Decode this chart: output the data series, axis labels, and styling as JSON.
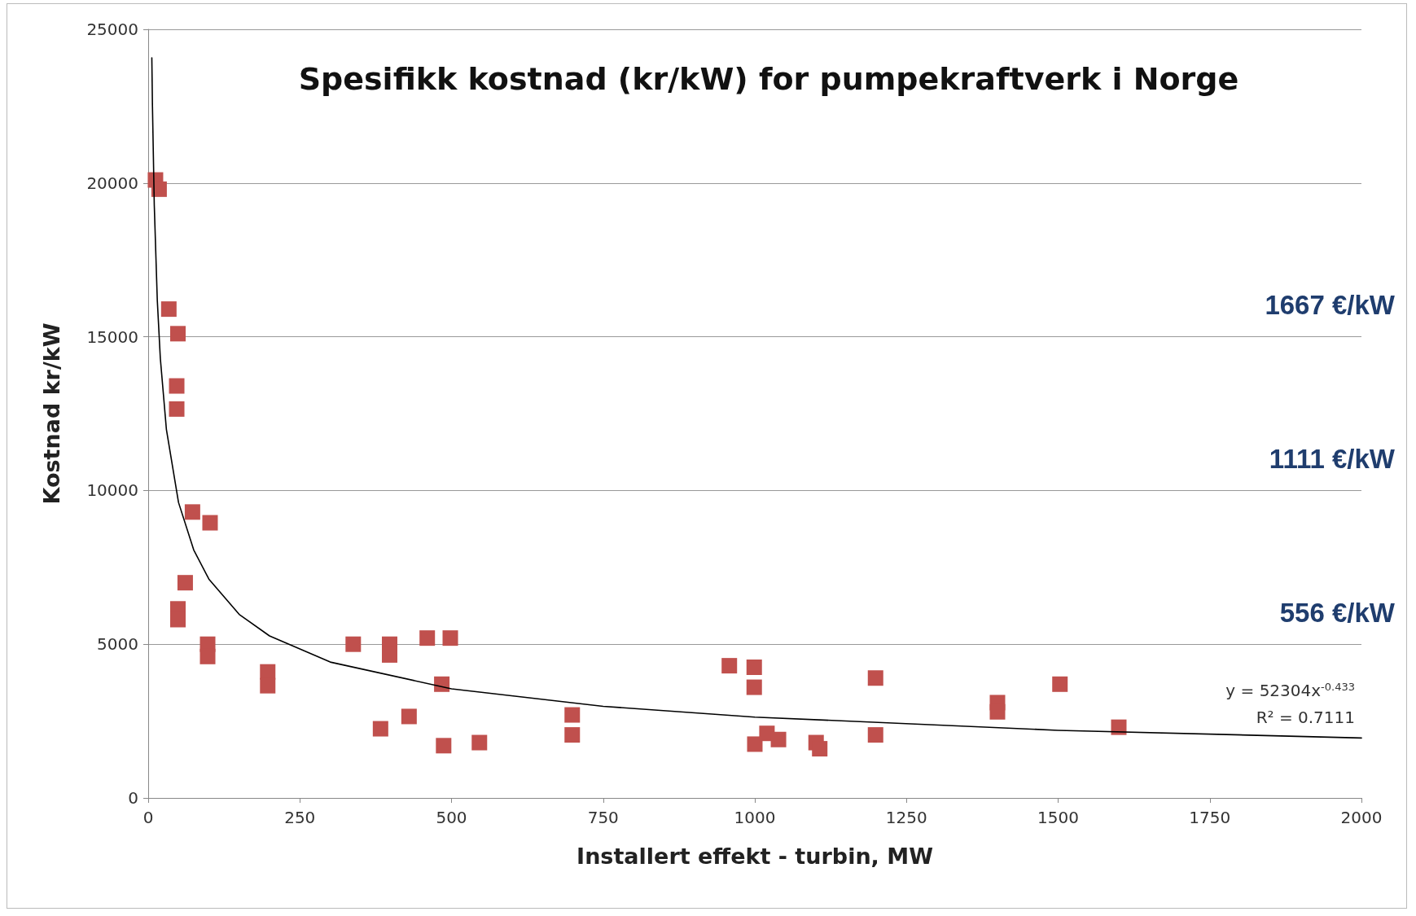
{
  "chart_data": {
    "type": "scatter",
    "title": "Spesifikk kostnad (kr/kW) for pumpekraftverk i Norge",
    "xlabel": "Installert effekt - turbin, MW",
    "ylabel": "Kostnad kr/kW",
    "xlim": [
      0,
      2000
    ],
    "xticks": [
      0,
      250,
      500,
      750,
      1000,
      1250,
      1500,
      1750,
      2000
    ],
    "ylim": [
      0,
      25000
    ],
    "yticks": [
      0,
      5000,
      10000,
      15000,
      20000,
      25000
    ],
    "grid": "y",
    "marker": "square",
    "annotations": [
      "1667 €/kW",
      "1111 €/kW",
      "556 €/kW",
      "y = 52304x$^{-0.433}$",
      "R² = 0.7111"
    ],
    "series": [
      {
        "color": "#c0504d",
        "x": [
          12,
          18,
          34,
          49,
          47,
          47,
          73,
          102,
          61,
          49,
          49,
          98,
          98,
          197,
          197,
          338,
          398,
          398,
          460,
          498,
          484,
          430,
          383,
          487,
          546,
          699,
          699,
          958,
          999,
          999,
          1000,
          1020,
          1039,
          1101,
          1107,
          1199,
          1199,
          1400,
          1400,
          1503,
          1600
        ],
        "values": [
          20100,
          19800,
          15900,
          15100,
          13400,
          12650,
          9300,
          8950,
          7000,
          6150,
          5800,
          5000,
          4600,
          4100,
          3650,
          5000,
          5000,
          4650,
          5200,
          5200,
          3700,
          2650,
          2250,
          1700,
          1800,
          2700,
          2050,
          4300,
          4250,
          3600,
          1750,
          2100,
          1900,
          1800,
          1600,
          3900,
          2050,
          3100,
          2800,
          3700,
          2300
        ]
      },
      {
        "type": "line",
        "color": "#000000",
        "marker": "none",
        "x": [
          6,
          7,
          10,
          15,
          20,
          30,
          50,
          75,
          100,
          150,
          200,
          300,
          500,
          750,
          1000,
          1500,
          2000
        ],
        "values": [
          24070,
          22530,
          19300,
          16190,
          14300,
          11990,
          9610,
          8070,
          7120,
          5970,
          5270,
          4420,
          3550,
          2980,
          2630,
          2200,
          1950
        ]
      }
    ]
  }
}
